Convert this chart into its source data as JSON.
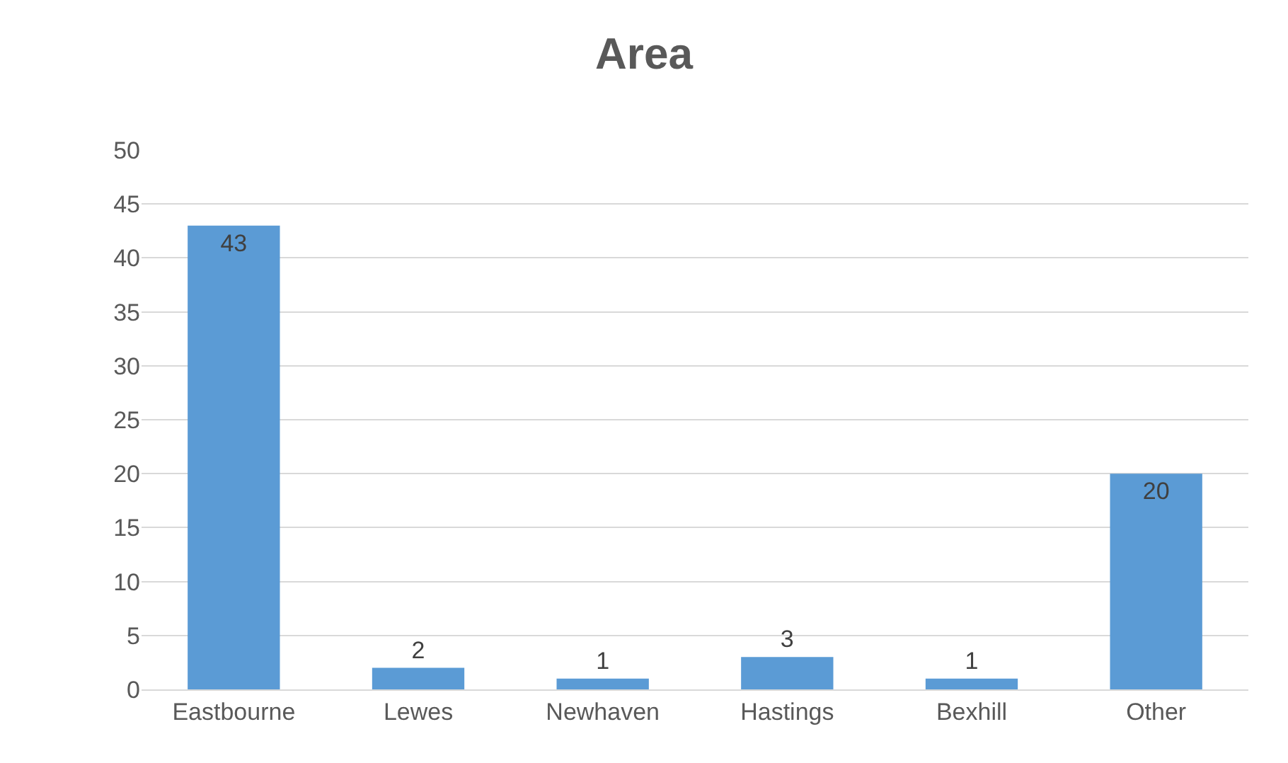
{
  "chart_data": {
    "type": "bar",
    "title": "Area",
    "categories": [
      "Eastbourne",
      "Lewes",
      "Newhaven",
      "Hastings",
      "Bexhill",
      "Other"
    ],
    "values": [
      43,
      2,
      1,
      3,
      1,
      20
    ],
    "color": "#5b9bd5",
    "ylim": [
      0,
      50
    ],
    "yticks": [
      0,
      5,
      10,
      15,
      20,
      25,
      30,
      35,
      40,
      45,
      50
    ],
    "grid": "y",
    "data_labels": true
  }
}
